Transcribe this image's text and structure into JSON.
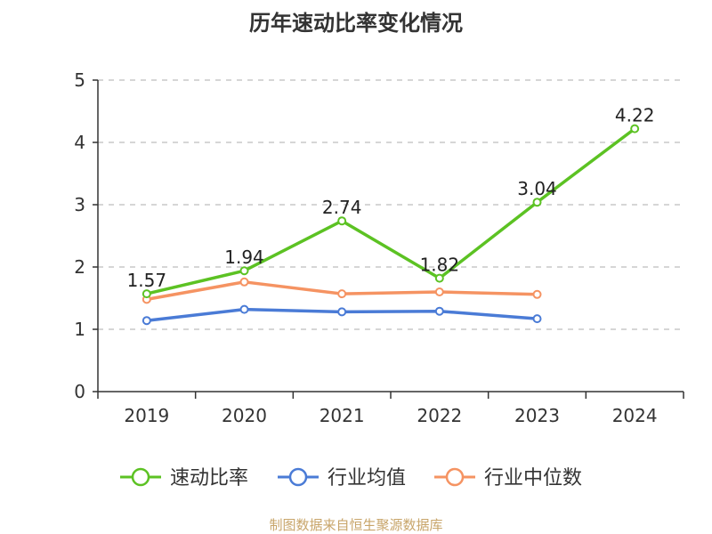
{
  "chart_data": {
    "type": "line",
    "title": "历年速动比率变化情况",
    "categories": [
      "2019",
      "2020",
      "2021",
      "2022",
      "2023",
      "2024"
    ],
    "ylim": [
      0,
      5
    ],
    "yticks": [
      0,
      1,
      2,
      3,
      4,
      5
    ],
    "grid": true,
    "legend_position": "bottom",
    "series": [
      {
        "name": "速动比率",
        "color": "#5cc223",
        "values": [
          1.57,
          1.94,
          2.74,
          1.82,
          3.04,
          4.22
        ],
        "labels": [
          "1.57",
          "1.94",
          "2.74",
          "1.82",
          "3.04",
          "4.22"
        ]
      },
      {
        "name": "行业均值",
        "color": "#4a7bd6",
        "values": [
          1.14,
          1.32,
          1.28,
          1.29,
          1.17,
          null
        ]
      },
      {
        "name": "行业中位数",
        "color": "#f59362",
        "values": [
          1.48,
          1.76,
          1.57,
          1.6,
          1.56,
          null
        ]
      }
    ]
  },
  "source": "制图数据来自恒生聚源数据库"
}
